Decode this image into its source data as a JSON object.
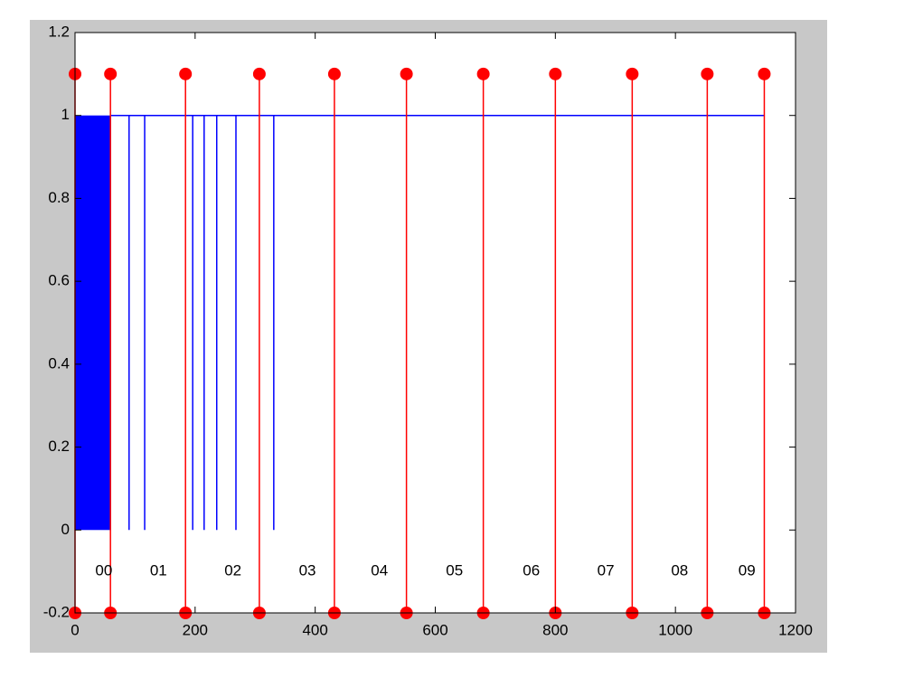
{
  "chart_data": {
    "type": "stem-signal",
    "xlim": [
      0,
      1200
    ],
    "ylim": [
      -0.2,
      1.2
    ],
    "xticks": [
      0,
      200,
      400,
      600,
      800,
      1000,
      1200
    ],
    "yticks": [
      -0.2,
      0,
      0.2,
      0.4,
      0.6,
      0.8,
      1,
      1.2
    ],
    "signal": {
      "color": "#0000ff",
      "block": {
        "x": [
          0,
          60
        ],
        "values": [
          0,
          1
        ]
      },
      "level": 1,
      "level_line": {
        "x": [
          60,
          1148
        ],
        "values": [
          1,
          1
        ]
      },
      "dips": {
        "x": [
          90,
          116,
          196,
          215,
          236,
          268,
          331
        ],
        "values": [
          0,
          0,
          0,
          0,
          0,
          0,
          0
        ]
      }
    },
    "stems": {
      "color": "#ff0000",
      "baseline": -0.2,
      "x": [
        0,
        59,
        184,
        307,
        432,
        552,
        680,
        800,
        928,
        1053,
        1148
      ],
      "values": [
        1.1,
        1.1,
        1.1,
        1.1,
        1.1,
        1.1,
        1.1,
        1.1,
        1.1,
        1.1,
        1.1
      ]
    },
    "segment_labels": [
      {
        "text": "00",
        "x": 48,
        "y": -0.1
      },
      {
        "text": "01",
        "x": 139,
        "y": -0.1
      },
      {
        "text": "02",
        "x": 263,
        "y": -0.1
      },
      {
        "text": "03",
        "x": 387,
        "y": -0.1
      },
      {
        "text": "04",
        "x": 507,
        "y": -0.1
      },
      {
        "text": "05",
        "x": 632,
        "y": -0.1
      },
      {
        "text": "06",
        "x": 760,
        "y": -0.1
      },
      {
        "text": "07",
        "x": 884,
        "y": -0.1
      },
      {
        "text": "08",
        "x": 1007,
        "y": -0.1
      },
      {
        "text": "09",
        "x": 1119,
        "y": -0.1
      }
    ]
  }
}
